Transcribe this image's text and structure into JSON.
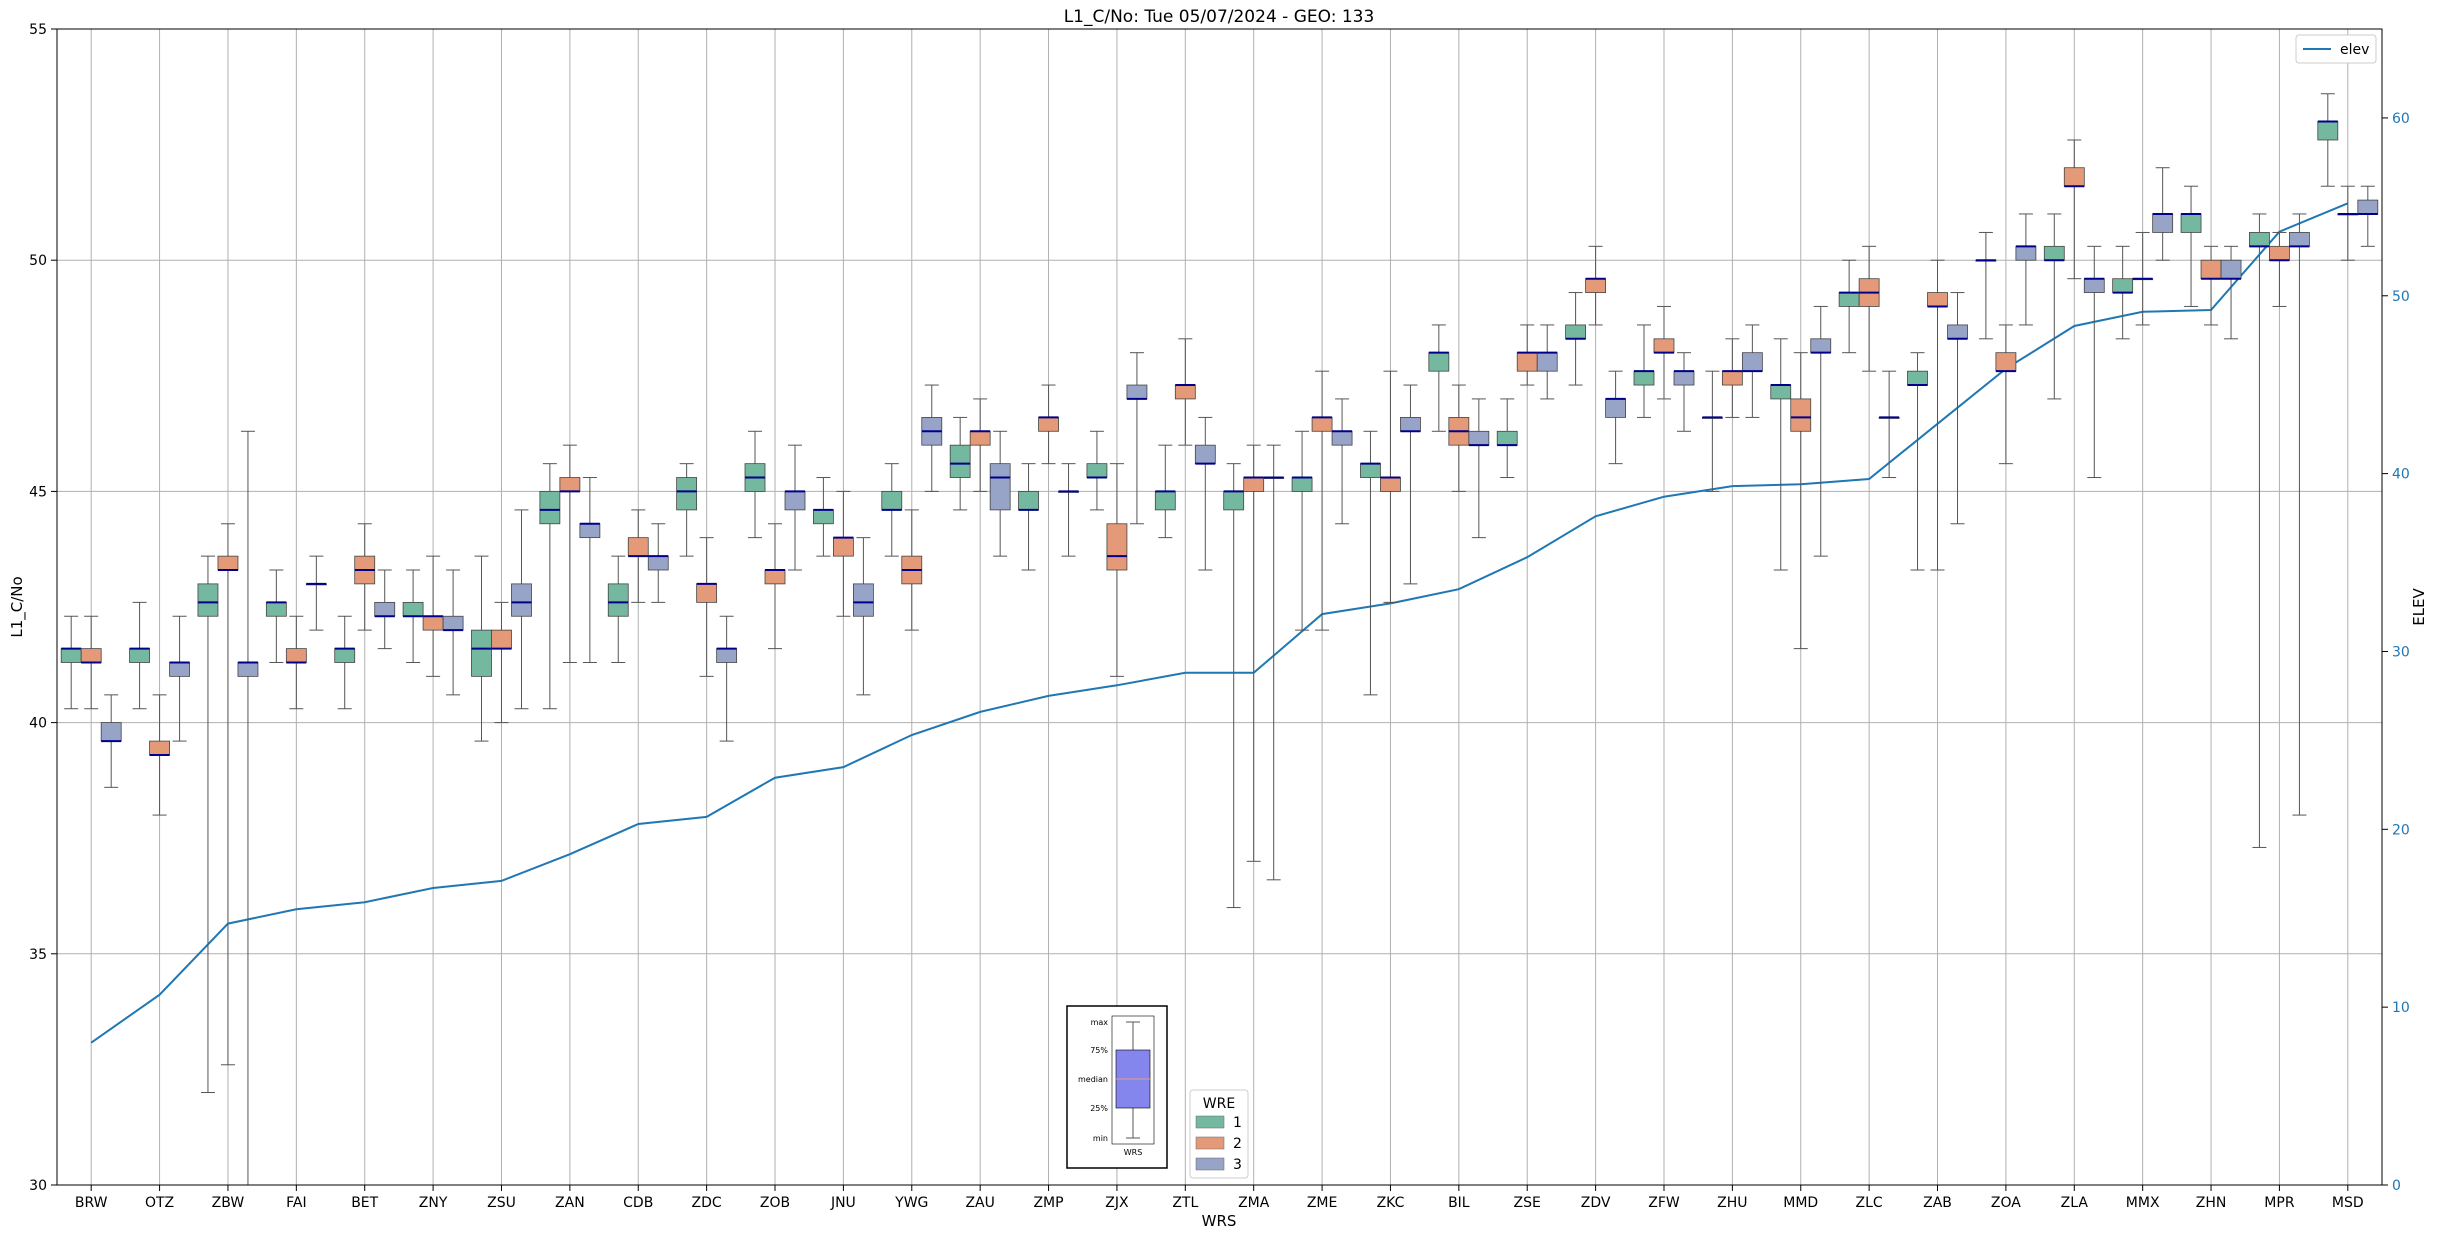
{
  "chart_data": {
    "type": "box",
    "title": "L1_C/No: Tue 05/07/2024 - GEO: 133",
    "xlabel": "WRS",
    "ylabel": "L1_C/No",
    "y2label": "ELEV",
    "ylim": [
      30,
      55
    ],
    "y2lim": [
      0,
      65
    ],
    "yticks": [
      30,
      35,
      40,
      45,
      50,
      55
    ],
    "y2ticks": [
      0,
      10,
      20,
      30,
      40,
      50,
      60
    ],
    "grid": true,
    "categories": [
      "BRW",
      "OTZ",
      "ZBW",
      "FAI",
      "BET",
      "ZNY",
      "ZSU",
      "ZAN",
      "CDB",
      "ZDC",
      "ZOB",
      "JNU",
      "YWG",
      "ZAU",
      "ZMP",
      "ZJX",
      "ZTL",
      "ZMA",
      "ZME",
      "ZKC",
      "BIL",
      "ZSE",
      "ZDV",
      "ZFW",
      "ZHU",
      "MMD",
      "ZLC",
      "ZAB",
      "ZOA",
      "ZLA",
      "MMX",
      "ZHN",
      "MPR",
      "MSD"
    ],
    "wre_legend": {
      "title": "WRE",
      "labels": [
        "1",
        "2",
        "3"
      ]
    },
    "colors": {
      "wre1": "#75b8a0",
      "wre2": "#e49a78",
      "wre3": "#97a4c8",
      "median": "#00008b",
      "whisker": "#555555",
      "elev": "#1f77b4",
      "grid": "#b0b0b0"
    },
    "elev_legend": "elev",
    "elev": [
      8,
      10.7,
      14.7,
      15.5,
      15.9,
      16.7,
      17.1,
      18.6,
      20.3,
      20.7,
      22.9,
      23.5,
      25.3,
      26.6,
      27.5,
      28.1,
      28.8,
      28.8,
      32.1,
      32.7,
      33.5,
      35.3,
      37.6,
      38.7,
      39.3,
      39.4,
      39.7,
      42.8,
      45.9,
      48.3,
      49.1,
      49.2,
      53.6,
      55.2
    ],
    "boxes": [
      [
        [
          40.3,
          41.3,
          41.6,
          41.6,
          42.3
        ],
        [
          40.3,
          41.3,
          41.3,
          41.6,
          42.3
        ],
        [
          38.6,
          39.6,
          39.6,
          40.0,
          40.6
        ]
      ],
      [
        [
          40.3,
          41.3,
          41.6,
          41.6,
          42.6
        ],
        [
          38.0,
          39.3,
          39.3,
          39.6,
          40.6
        ],
        [
          39.6,
          41.0,
          41.3,
          41.3,
          42.3
        ]
      ],
      [
        [
          32.0,
          42.3,
          42.6,
          43.0,
          43.6
        ],
        [
          32.6,
          43.3,
          43.3,
          43.6,
          44.3
        ],
        [
          29.0,
          41.0,
          41.3,
          41.3,
          46.3
        ]
      ],
      [
        [
          41.3,
          42.3,
          42.6,
          42.6,
          43.3
        ],
        [
          40.3,
          41.3,
          41.3,
          41.6,
          42.3
        ],
        [
          42.0,
          43.0,
          43.0,
          43.0,
          43.6
        ]
      ],
      [
        [
          40.3,
          41.3,
          41.6,
          41.6,
          42.3
        ],
        [
          42.0,
          43.0,
          43.3,
          43.6,
          44.3
        ],
        [
          41.6,
          42.3,
          42.3,
          42.6,
          43.3
        ]
      ],
      [
        [
          41.3,
          42.3,
          42.3,
          42.6,
          43.3
        ],
        [
          41.0,
          42.0,
          42.3,
          42.3,
          43.6
        ],
        [
          40.6,
          42.0,
          42.0,
          42.3,
          43.3
        ]
      ],
      [
        [
          39.6,
          41.0,
          41.6,
          42.0,
          43.6
        ],
        [
          40.0,
          41.6,
          41.6,
          42.0,
          42.6
        ],
        [
          40.3,
          42.3,
          42.6,
          43.0,
          44.6
        ]
      ],
      [
        [
          40.3,
          44.3,
          44.6,
          45.0,
          45.6
        ],
        [
          41.3,
          45.0,
          45.0,
          45.3,
          46.0
        ],
        [
          41.3,
          44.0,
          44.3,
          44.3,
          45.3
        ]
      ],
      [
        [
          41.3,
          42.3,
          42.6,
          43.0,
          43.6
        ],
        [
          42.6,
          43.6,
          43.6,
          44.0,
          44.6
        ],
        [
          42.6,
          43.3,
          43.6,
          43.6,
          44.3
        ]
      ],
      [
        [
          43.6,
          44.6,
          45.0,
          45.3,
          45.6
        ],
        [
          41.0,
          42.6,
          43.0,
          43.0,
          44.0
        ],
        [
          39.6,
          41.3,
          41.6,
          41.6,
          42.3
        ]
      ],
      [
        [
          44.0,
          45.0,
          45.3,
          45.6,
          46.3
        ],
        [
          41.6,
          43.0,
          43.3,
          43.3,
          44.3
        ],
        [
          43.3,
          44.6,
          45.0,
          45.0,
          46.0
        ]
      ],
      [
        [
          43.6,
          44.3,
          44.6,
          44.6,
          45.3
        ],
        [
          42.3,
          43.6,
          44.0,
          44.0,
          45.0
        ],
        [
          40.6,
          42.3,
          42.6,
          43.0,
          44.0
        ]
      ],
      [
        [
          43.6,
          44.6,
          44.6,
          45.0,
          45.6
        ],
        [
          42.0,
          43.0,
          43.3,
          43.6,
          44.6
        ],
        [
          45.0,
          46.0,
          46.3,
          46.6,
          47.3
        ]
      ],
      [
        [
          44.6,
          45.3,
          45.6,
          46.0,
          46.6
        ],
        [
          45.0,
          46.0,
          46.3,
          46.3,
          47.0
        ],
        [
          43.6,
          44.6,
          45.3,
          45.6,
          46.3
        ]
      ],
      [
        [
          43.3,
          44.6,
          44.6,
          45.0,
          45.6
        ],
        [
          45.6,
          46.3,
          46.6,
          46.6,
          47.3
        ],
        [
          43.6,
          45.0,
          45.0,
          45.0,
          45.6
        ]
      ],
      [
        [
          44.6,
          45.3,
          45.3,
          45.6,
          46.3
        ],
        [
          41.0,
          43.3,
          43.6,
          44.3,
          45.6
        ],
        [
          44.3,
          47.0,
          47.0,
          47.3,
          48.0
        ]
      ],
      [
        [
          44.0,
          44.6,
          45.0,
          45.0,
          46.0
        ],
        [
          46.0,
          47.0,
          47.3,
          47.3,
          48.3
        ],
        [
          43.3,
          45.6,
          45.6,
          46.0,
          46.6
        ]
      ],
      [
        [
          36.0,
          44.6,
          45.0,
          45.0,
          45.6
        ],
        [
          37.0,
          45.0,
          45.3,
          45.3,
          46.0
        ],
        [
          36.6,
          45.3,
          45.3,
          45.3,
          46.0
        ]
      ],
      [
        [
          42.0,
          45.0,
          45.3,
          45.3,
          46.3
        ],
        [
          42.0,
          46.3,
          46.6,
          46.6,
          47.6
        ],
        [
          44.3,
          46.0,
          46.3,
          46.3,
          47.0
        ]
      ],
      [
        [
          40.6,
          45.3,
          45.6,
          45.6,
          46.3
        ],
        [
          42.6,
          45.0,
          45.3,
          45.3,
          47.6
        ],
        [
          43.0,
          46.3,
          46.3,
          46.6,
          47.3
        ]
      ],
      [
        [
          46.3,
          47.6,
          48.0,
          48.0,
          48.6
        ],
        [
          45.0,
          46.0,
          46.3,
          46.6,
          47.3
        ],
        [
          44.0,
          46.0,
          46.0,
          46.3,
          47.0
        ]
      ],
      [
        [
          45.3,
          46.0,
          46.0,
          46.3,
          47.0
        ],
        [
          47.3,
          47.6,
          48.0,
          48.0,
          48.6
        ],
        [
          47.0,
          47.6,
          48.0,
          48.0,
          48.6
        ]
      ],
      [
        [
          47.3,
          48.3,
          48.3,
          48.6,
          49.3
        ],
        [
          48.6,
          49.3,
          49.6,
          49.6,
          50.3
        ],
        [
          45.6,
          46.6,
          47.0,
          47.0,
          47.6
        ]
      ],
      [
        [
          46.6,
          47.3,
          47.6,
          47.6,
          48.6
        ],
        [
          47.0,
          48.0,
          48.0,
          48.3,
          49.0
        ],
        [
          46.3,
          47.3,
          47.6,
          47.6,
          48.0
        ]
      ],
      [
        [
          45.0,
          46.6,
          46.6,
          46.6,
          47.6
        ],
        [
          46.6,
          47.3,
          47.6,
          47.6,
          48.3
        ],
        [
          46.6,
          47.6,
          47.6,
          48.0,
          48.6
        ]
      ],
      [
        [
          43.3,
          47.0,
          47.3,
          47.3,
          48.3
        ],
        [
          41.6,
          46.3,
          46.6,
          47.0,
          48.0
        ],
        [
          43.6,
          48.0,
          48.0,
          48.3,
          49.0
        ]
      ],
      [
        [
          48.0,
          49.0,
          49.3,
          49.3,
          50.0
        ],
        [
          47.6,
          49.0,
          49.3,
          49.6,
          50.3
        ],
        [
          45.3,
          46.6,
          46.6,
          46.6,
          47.6
        ]
      ],
      [
        [
          43.3,
          47.3,
          47.3,
          47.6,
          48.0
        ],
        [
          43.3,
          49.0,
          49.0,
          49.3,
          50.0
        ],
        [
          44.3,
          48.3,
          48.3,
          48.6,
          49.3
        ]
      ],
      [
        [
          48.3,
          50.0,
          50.0,
          50.0,
          50.6
        ],
        [
          45.6,
          47.6,
          47.6,
          48.0,
          48.6
        ],
        [
          48.6,
          50.0,
          50.3,
          50.3,
          51.0
        ]
      ],
      [
        [
          47.0,
          50.0,
          50.0,
          50.3,
          51.0
        ],
        [
          49.6,
          51.6,
          51.6,
          52.0,
          52.6
        ],
        [
          45.3,
          49.3,
          49.6,
          49.6,
          50.3
        ]
      ],
      [
        [
          48.3,
          49.3,
          49.3,
          49.6,
          50.3
        ],
        [
          48.6,
          49.6,
          49.6,
          49.6,
          50.6
        ],
        [
          50.0,
          50.6,
          51.0,
          51.0,
          52.0
        ]
      ],
      [
        [
          49.0,
          50.6,
          51.0,
          51.0,
          51.6
        ],
        [
          48.6,
          49.6,
          49.6,
          50.0,
          50.3
        ],
        [
          48.3,
          49.6,
          49.6,
          50.0,
          50.3
        ]
      ],
      [
        [
          37.3,
          50.3,
          50.3,
          50.6,
          51.0
        ],
        [
          49.0,
          50.0,
          50.0,
          50.3,
          50.6
        ],
        [
          38.0,
          50.3,
          50.3,
          50.6,
          51.0
        ]
      ],
      [
        [
          51.6,
          52.6,
          53.0,
          53.0,
          53.6
        ],
        [
          50.0,
          51.0,
          51.0,
          51.0,
          51.6
        ],
        [
          50.3,
          51.0,
          51.0,
          51.3,
          51.6
        ]
      ]
    ],
    "box_key": {
      "labels": [
        "max",
        "75%",
        "median",
        "25%",
        "min"
      ],
      "xlabel": "WRS"
    }
  }
}
